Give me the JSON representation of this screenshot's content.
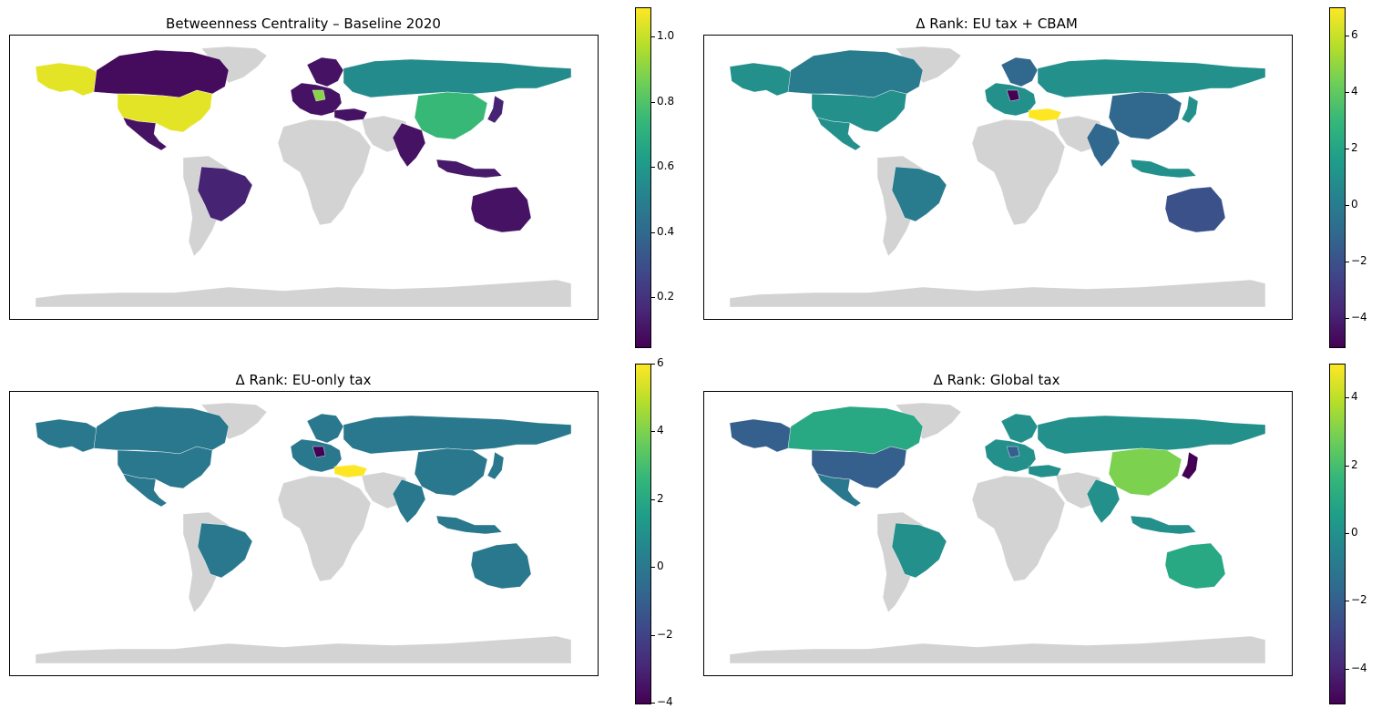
{
  "colors": {
    "land_nodata": "#d3d3d3",
    "viridis": [
      "#440154",
      "#482878",
      "#3e4989",
      "#31688e",
      "#26828e",
      "#1f9e89",
      "#35b779",
      "#6ece58",
      "#b5de2b",
      "#fde725"
    ]
  },
  "panels": [
    {
      "title": "Betweenness Centrality – Baseline 2020",
      "colorbar": {
        "min": 0.05,
        "max": 1.09,
        "ticks": [
          "0.2",
          "0.4",
          "0.6",
          "0.8",
          "1.0"
        ],
        "tick_values": [
          0.2,
          0.4,
          0.6,
          0.8,
          1.0
        ]
      },
      "region_values": {
        "alaska": 1.05,
        "canada": 0.08,
        "usa": 1.05,
        "mexico": 0.1,
        "greenland": null,
        "brazil": 0.15,
        "south_america_rest": null,
        "africa": null,
        "europe_west": 0.1,
        "germany": 0.9,
        "scandinavia": 0.1,
        "russia": 0.55,
        "china": 0.75,
        "india": 0.1,
        "middle_east": null,
        "indonesia": 0.12,
        "japan": 0.15,
        "australia": 0.1,
        "turkey": 0.1,
        "antarctica": null
      }
    },
    {
      "title": "Δ Rank: EU tax + CBAM",
      "colorbar": {
        "min": -5,
        "max": 7,
        "ticks": [
          "−4",
          "−2",
          "0",
          "2",
          "4",
          "6"
        ],
        "tick_values": [
          -4,
          -2,
          0,
          2,
          4,
          6
        ]
      },
      "region_values": {
        "alaska": 1,
        "canada": 0,
        "usa": 1,
        "mexico": 1,
        "greenland": null,
        "brazil": 0,
        "south_america_rest": null,
        "africa": null,
        "europe_west": 1,
        "germany": -5,
        "scandinavia": -1,
        "russia": 1,
        "china": -1,
        "india": -1,
        "middle_east": null,
        "indonesia": 1,
        "japan": 1,
        "australia": -2,
        "turkey": 7,
        "antarctica": null
      }
    },
    {
      "title": "Δ Rank: EU-only tax",
      "colorbar": {
        "min": -4,
        "max": 6,
        "ticks": [
          "−4",
          "−2",
          "0",
          "2",
          "4",
          "6"
        ],
        "tick_values": [
          -4,
          -2,
          0,
          2,
          4,
          6
        ]
      },
      "region_values": {
        "alaska": 0,
        "canada": 0,
        "usa": 0,
        "mexico": 0,
        "greenland": null,
        "brazil": 0,
        "south_america_rest": null,
        "africa": null,
        "europe_west": 0,
        "germany": -4,
        "scandinavia": 0,
        "russia": 0,
        "china": 0,
        "india": 0,
        "middle_east": null,
        "indonesia": 0,
        "japan": 0,
        "australia": 0,
        "turkey": 6,
        "antarctica": null
      }
    },
    {
      "title": "Δ Rank: Global tax",
      "colorbar": {
        "min": -5,
        "max": 5,
        "ticks": [
          "−4",
          "−2",
          "0",
          "2",
          "4"
        ],
        "tick_values": [
          -4,
          -2,
          0,
          2,
          4
        ]
      },
      "region_values": {
        "alaska": -2,
        "canada": 1,
        "usa": -2,
        "mexico": -1,
        "greenland": null,
        "brazil": 0,
        "south_america_rest": null,
        "africa": null,
        "europe_west": 0,
        "germany": -2,
        "scandinavia": 0,
        "russia": 0,
        "china": 3,
        "india": 0,
        "middle_east": null,
        "indonesia": 0,
        "japan": -5,
        "australia": 1,
        "turkey": 0,
        "antarctica": null
      }
    }
  ]
}
